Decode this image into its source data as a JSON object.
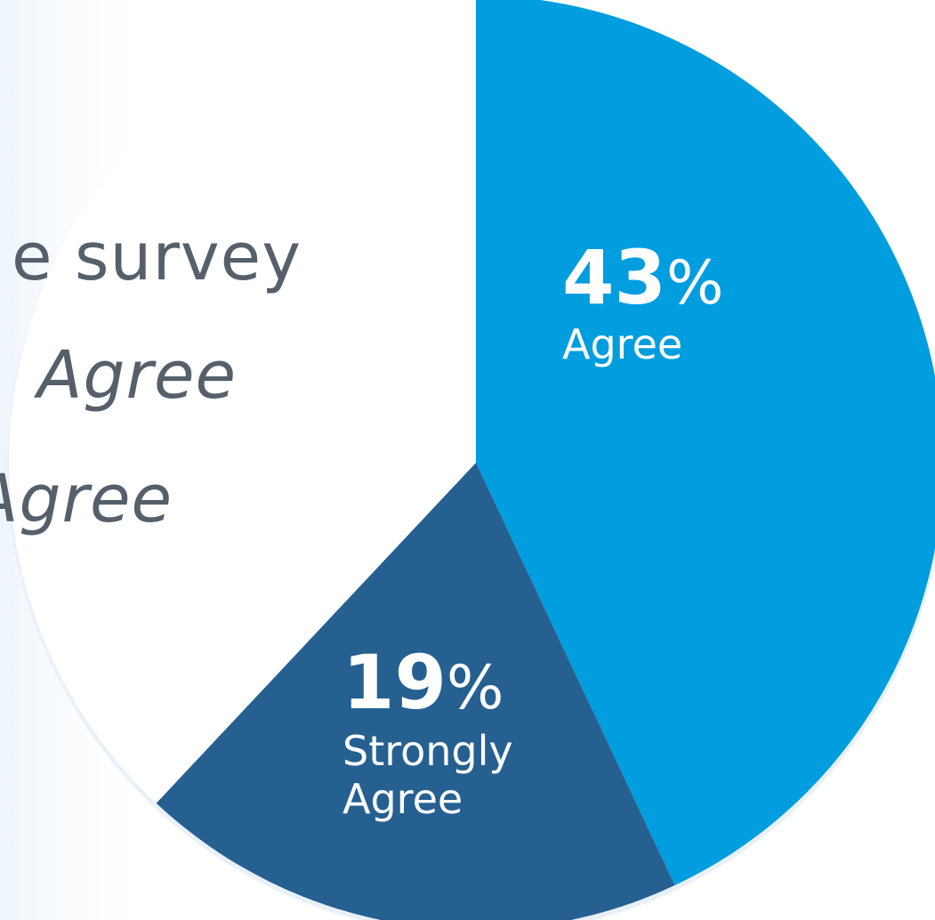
{
  "survey_text": {
    "line1": "e survey",
    "line2": "Agree",
    "line3": "Agree"
  },
  "chart_data": {
    "type": "pie",
    "slices": [
      {
        "label": "Agree",
        "value": 43,
        "value_text": "43",
        "unit": "%",
        "color": "#009ddf"
      },
      {
        "label": "Strongly Agree",
        "label_lines": [
          "Strongly",
          "Agree"
        ],
        "value": 19,
        "value_text": "19",
        "unit": "%",
        "color": "#256091"
      },
      {
        "label": "",
        "value": 38,
        "color": "#ffffff"
      }
    ],
    "start": "12 o'clock",
    "direction": "clockwise"
  }
}
